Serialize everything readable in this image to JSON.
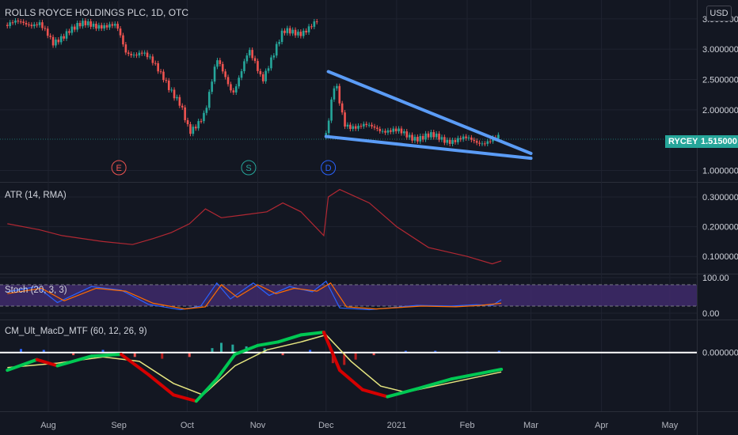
{
  "header": {
    "title": "ROLLS ROYCE HOLDINGS PLC, 1D, OTC",
    "currency": "USD",
    "symbol": "RYCEY",
    "last_price": "1.515000"
  },
  "events": [
    "E",
    "S",
    "D"
  ],
  "panels": {
    "atr": {
      "label": "ATR (14, RMA)"
    },
    "stoch": {
      "label": "Stoch (20, 3, 3)"
    },
    "macd": {
      "label": "CM_Ult_MacD_MTF (60, 12, 26, 9)"
    }
  },
  "colors": {
    "background": "#131722",
    "up": "#26a69a",
    "down": "#ef5350",
    "trendline": "#5b9cf6",
    "atr_line": "#b22833",
    "stoch_k": "#2962ff",
    "stoch_d": "#ff6d00",
    "stoch_band": "#3f2a6b",
    "macd_green": "#00c853",
    "macd_red": "#d50000",
    "signal": "#e6e680",
    "zero_line": "#ffffff"
  },
  "chart_data": [
    {
      "type": "candlestick",
      "title": "ROLLS ROYCE HOLDINGS PLC, 1D, OTC",
      "ylim": [
        0.85,
        3.55
      ],
      "ticks": [
        {
          "v": 3.5,
          "label": "3.500000"
        },
        {
          "v": 3.0,
          "label": "3.000000"
        },
        {
          "v": 2.5,
          "label": "2.500000"
        },
        {
          "v": 2.0,
          "label": "2.000000"
        },
        {
          "v": 1.0,
          "label": "1.000000"
        }
      ],
      "x_ticks": [
        "Aug",
        "Sep",
        "Oct",
        "Nov",
        "Dec",
        "2021",
        "Feb",
        "Mar",
        "Apr",
        "May"
      ],
      "approx_close_path": [
        {
          "x": "2020-07-14",
          "y": 3.4
        },
        {
          "x": "2020-07-28",
          "y": 3.45
        },
        {
          "x": "2020-08-03",
          "y": 3.05
        },
        {
          "x": "2020-08-10",
          "y": 3.35
        },
        {
          "x": "2020-08-24",
          "y": 3.42
        },
        {
          "x": "2020-08-31",
          "y": 3.35
        },
        {
          "x": "2020-09-04",
          "y": 2.95
        },
        {
          "x": "2020-09-11",
          "y": 2.95
        },
        {
          "x": "2020-09-21",
          "y": 2.55
        },
        {
          "x": "2020-09-28",
          "y": 2.05
        },
        {
          "x": "2020-10-02",
          "y": 1.6
        },
        {
          "x": "2020-10-09",
          "y": 2.0
        },
        {
          "x": "2020-10-14",
          "y": 2.8
        },
        {
          "x": "2020-10-21",
          "y": 2.3
        },
        {
          "x": "2020-10-28",
          "y": 2.95
        },
        {
          "x": "2020-11-03",
          "y": 2.5
        },
        {
          "x": "2020-11-06",
          "y": 2.8
        },
        {
          "x": "2020-11-12",
          "y": 3.25
        },
        {
          "x": "2020-11-20",
          "y": 3.3
        },
        {
          "x": "2020-11-27",
          "y": 3.42
        }
      ],
      "approx_close_path_2": [
        {
          "x": "2020-12-01",
          "y": 1.55
        },
        {
          "x": "2020-12-03",
          "y": 2.0
        },
        {
          "x": "2020-12-05",
          "y": 2.45
        },
        {
          "x": "2020-12-09",
          "y": 1.8
        },
        {
          "x": "2020-12-15",
          "y": 1.7
        },
        {
          "x": "2020-12-23",
          "y": 1.72
        },
        {
          "x": "2021-01-05",
          "y": 1.58
        },
        {
          "x": "2021-01-20",
          "y": 1.53
        },
        {
          "x": "2021-02-05",
          "y": 1.48
        },
        {
          "x": "2021-02-15",
          "y": 1.515
        }
      ],
      "trendlines": [
        {
          "from": {
            "x": "2020-12-02",
            "y": 2.63
          },
          "to": {
            "x": "2021-03-01",
            "y": 1.28
          }
        },
        {
          "from": {
            "x": "2020-12-01",
            "y": 1.56
          },
          "to": {
            "x": "2021-03-01",
            "y": 1.2
          }
        }
      ],
      "last": 1.515
    },
    {
      "type": "line",
      "title": "ATR (14, RMA)",
      "ylim": [
        0.05,
        0.34
      ],
      "ticks": [
        {
          "v": 0.3,
          "label": "0.300000"
        },
        {
          "v": 0.2,
          "label": "0.200000"
        },
        {
          "v": 0.1,
          "label": "0.100000"
        }
      ],
      "points": [
        {
          "x": "2020-07-14",
          "y": 0.21
        },
        {
          "x": "2020-07-28",
          "y": 0.19
        },
        {
          "x": "2020-08-07",
          "y": 0.17
        },
        {
          "x": "2020-08-25",
          "y": 0.15
        },
        {
          "x": "2020-09-07",
          "y": 0.14
        },
        {
          "x": "2020-09-16",
          "y": 0.16
        },
        {
          "x": "2020-09-24",
          "y": 0.18
        },
        {
          "x": "2020-10-02",
          "y": 0.21
        },
        {
          "x": "2020-10-09",
          "y": 0.26
        },
        {
          "x": "2020-10-16",
          "y": 0.23
        },
        {
          "x": "2020-10-26",
          "y": 0.24
        },
        {
          "x": "2020-11-05",
          "y": 0.25
        },
        {
          "x": "2020-11-12",
          "y": 0.28
        },
        {
          "x": "2020-11-20",
          "y": 0.25
        },
        {
          "x": "2020-11-30",
          "y": 0.17
        },
        {
          "x": "2020-12-02",
          "y": 0.3
        },
        {
          "x": "2020-12-07",
          "y": 0.325
        },
        {
          "x": "2020-12-20",
          "y": 0.28
        },
        {
          "x": "2021-01-01",
          "y": 0.2
        },
        {
          "x": "2021-01-15",
          "y": 0.13
        },
        {
          "x": "2021-02-01",
          "y": 0.1
        },
        {
          "x": "2021-02-12",
          "y": 0.075
        },
        {
          "x": "2021-02-16",
          "y": 0.085
        }
      ]
    },
    {
      "type": "line",
      "title": "Stoch (20, 3, 3)",
      "ylim": [
        0,
        100
      ],
      "ticks": [
        {
          "v": 100,
          "label": "100.00"
        },
        {
          "v": 0,
          "label": "0.00"
        }
      ],
      "band": [
        20,
        80
      ],
      "series": [
        {
          "points": [
            {
              "x": "2020-07-14",
              "y": 60
            },
            {
              "x": "2020-07-27",
              "y": 75
            },
            {
              "x": "2020-08-05",
              "y": 30
            },
            {
              "x": "2020-08-20",
              "y": 75
            },
            {
              "x": "2020-09-02",
              "y": 65
            },
            {
              "x": "2020-09-14",
              "y": 25
            },
            {
              "x": "2020-09-28",
              "y": 10
            },
            {
              "x": "2020-10-07",
              "y": 20
            },
            {
              "x": "2020-10-14",
              "y": 85
            },
            {
              "x": "2020-10-20",
              "y": 40
            },
            {
              "x": "2020-10-30",
              "y": 85
            },
            {
              "x": "2020-11-06",
              "y": 50
            },
            {
              "x": "2020-11-15",
              "y": 75
            },
            {
              "x": "2020-11-25",
              "y": 60
            },
            {
              "x": "2020-12-01",
              "y": 90
            },
            {
              "x": "2020-12-07",
              "y": 15
            },
            {
              "x": "2020-12-20",
              "y": 10
            },
            {
              "x": "2021-01-10",
              "y": 22
            },
            {
              "x": "2021-01-25",
              "y": 20
            },
            {
              "x": "2021-02-05",
              "y": 24
            },
            {
              "x": "2021-02-12",
              "y": 22
            },
            {
              "x": "2021-02-16",
              "y": 38
            }
          ]
        },
        {
          "points": [
            {
              "x": "2020-07-14",
              "y": 55
            },
            {
              "x": "2020-07-29",
              "y": 70
            },
            {
              "x": "2020-08-08",
              "y": 35
            },
            {
              "x": "2020-08-22",
              "y": 70
            },
            {
              "x": "2020-09-04",
              "y": 62
            },
            {
              "x": "2020-09-16",
              "y": 28
            },
            {
              "x": "2020-09-30",
              "y": 12
            },
            {
              "x": "2020-10-09",
              "y": 18
            },
            {
              "x": "2020-10-16",
              "y": 80
            },
            {
              "x": "2020-10-23",
              "y": 45
            },
            {
              "x": "2020-11-01",
              "y": 80
            },
            {
              "x": "2020-11-09",
              "y": 55
            },
            {
              "x": "2020-11-17",
              "y": 70
            },
            {
              "x": "2020-11-27",
              "y": 62
            },
            {
              "x": "2020-12-03",
              "y": 85
            },
            {
              "x": "2020-12-10",
              "y": 18
            },
            {
              "x": "2020-12-23",
              "y": 12
            },
            {
              "x": "2021-01-12",
              "y": 20
            },
            {
              "x": "2021-01-27",
              "y": 18
            },
            {
              "x": "2021-02-07",
              "y": 22
            },
            {
              "x": "2021-02-16",
              "y": 28
            }
          ]
        }
      ]
    },
    {
      "type": "line",
      "title": "CM_Ult_MacD_MTF (60, 12, 26, 9)",
      "ylim": [
        -0.62,
        0.32
      ],
      "ticks": [
        {
          "v": 0,
          "label": "0.000000"
        }
      ],
      "macd": [
        {
          "x": "2020-07-14",
          "y": -0.2
        },
        {
          "x": "2020-07-27",
          "y": -0.08
        },
        {
          "x": "2020-08-05",
          "y": -0.15
        },
        {
          "x": "2020-08-20",
          "y": -0.04
        },
        {
          "x": "2020-09-02",
          "y": -0.02
        },
        {
          "x": "2020-09-14",
          "y": -0.25
        },
        {
          "x": "2020-09-25",
          "y": -0.48
        },
        {
          "x": "2020-10-05",
          "y": -0.55
        },
        {
          "x": "2020-10-14",
          "y": -0.3
        },
        {
          "x": "2020-10-22",
          "y": -0.02
        },
        {
          "x": "2020-11-01",
          "y": 0.08
        },
        {
          "x": "2020-11-10",
          "y": 0.12
        },
        {
          "x": "2020-11-20",
          "y": 0.2
        },
        {
          "x": "2020-11-30",
          "y": 0.23
        },
        {
          "x": "2020-12-07",
          "y": -0.2
        },
        {
          "x": "2020-12-17",
          "y": -0.42
        },
        {
          "x": "2020-12-28",
          "y": -0.5
        },
        {
          "x": "2021-01-10",
          "y": -0.41
        },
        {
          "x": "2021-01-25",
          "y": -0.3
        },
        {
          "x": "2021-02-08",
          "y": -0.23
        },
        {
          "x": "2021-02-16",
          "y": -0.19
        }
      ],
      "signal": [
        {
          "x": "2020-07-14",
          "y": -0.17
        },
        {
          "x": "2020-08-05",
          "y": -0.12
        },
        {
          "x": "2020-08-25",
          "y": -0.05
        },
        {
          "x": "2020-09-10",
          "y": -0.1
        },
        {
          "x": "2020-09-25",
          "y": -0.35
        },
        {
          "x": "2020-10-08",
          "y": -0.48
        },
        {
          "x": "2020-10-22",
          "y": -0.15
        },
        {
          "x": "2020-11-05",
          "y": 0.03
        },
        {
          "x": "2020-11-20",
          "y": 0.12
        },
        {
          "x": "2020-12-01",
          "y": 0.2
        },
        {
          "x": "2020-12-12",
          "y": -0.1
        },
        {
          "x": "2020-12-25",
          "y": -0.38
        },
        {
          "x": "2021-01-05",
          "y": -0.45
        },
        {
          "x": "2021-01-25",
          "y": -0.34
        },
        {
          "x": "2021-02-16",
          "y": -0.22
        }
      ],
      "histogram": [
        {
          "x": "2020-07-20",
          "y": 0.04
        },
        {
          "x": "2020-07-30",
          "y": 0.03
        },
        {
          "x": "2020-08-12",
          "y": -0.03
        },
        {
          "x": "2020-08-25",
          "y": 0.03
        },
        {
          "x": "2020-09-08",
          "y": -0.05
        },
        {
          "x": "2020-09-20",
          "y": -0.07
        },
        {
          "x": "2020-10-02",
          "y": -0.05
        },
        {
          "x": "2020-10-12",
          "y": 0.05
        },
        {
          "x": "2020-10-16",
          "y": 0.11
        },
        {
          "x": "2020-10-21",
          "y": 0.09
        },
        {
          "x": "2020-10-27",
          "y": 0.07
        },
        {
          "x": "2020-11-04",
          "y": 0.05
        },
        {
          "x": "2020-11-12",
          "y": -0.03
        },
        {
          "x": "2020-11-24",
          "y": 0.03
        },
        {
          "x": "2020-12-04",
          "y": -0.12
        },
        {
          "x": "2020-12-09",
          "y": -0.14
        },
        {
          "x": "2020-12-14",
          "y": -0.08
        },
        {
          "x": "2020-12-22",
          "y": -0.03
        },
        {
          "x": "2021-01-05",
          "y": 0.02
        },
        {
          "x": "2021-01-18",
          "y": 0.02
        },
        {
          "x": "2021-02-01",
          "y": 0.01
        },
        {
          "x": "2021-02-15",
          "y": 0.02
        }
      ]
    }
  ]
}
